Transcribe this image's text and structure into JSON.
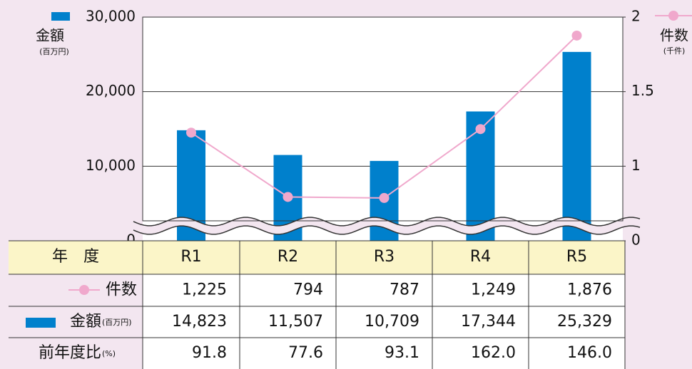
{
  "chart_data": {
    "type": "bar-line",
    "categories": [
      "R1",
      "R2",
      "R3",
      "R4",
      "R5"
    ],
    "y_label": "金額",
    "y_unit": "(百万円)",
    "y2_label": "件数",
    "y2_unit": "(千件)",
    "series": [
      {
        "name": "金額",
        "type": "bar",
        "color": "#0080cc",
        "values": [
          14823,
          11507,
          10709,
          17344,
          25329
        ]
      },
      {
        "name": "件数",
        "type": "line",
        "axis": "y2",
        "color": "#f0a8cc",
        "values": [
          1.225,
          0.794,
          0.787,
          1.249,
          1.876
        ]
      }
    ],
    "ylim": [
      0,
      30000
    ],
    "yticks": [
      0,
      {
        "value": 10000,
        "label": "10,000"
      },
      {
        "value": 20000,
        "label": "20,000"
      },
      {
        "value": 30000,
        "label": "30,000"
      }
    ],
    "y2lim": [
      0,
      2
    ],
    "y2ticks": [
      0,
      1,
      1.5,
      2
    ],
    "y2_break": [
      0,
      0.5
    ],
    "grid": true
  },
  "table": {
    "corner": "年　度",
    "rows": [
      {
        "label": "件数",
        "cells": [
          "1,225",
          "794",
          "787",
          "1,249",
          "1,876"
        ]
      },
      {
        "label": "金額",
        "unit": "(百万円)",
        "cells": [
          "14,823",
          "11,507",
          "10,709",
          "17,344",
          "25,329"
        ]
      },
      {
        "label": "前年度比",
        "unit": "(%)",
        "cells": [
          "91.8",
          "77.6",
          "93.1",
          "162.0",
          "146.0"
        ]
      }
    ]
  }
}
